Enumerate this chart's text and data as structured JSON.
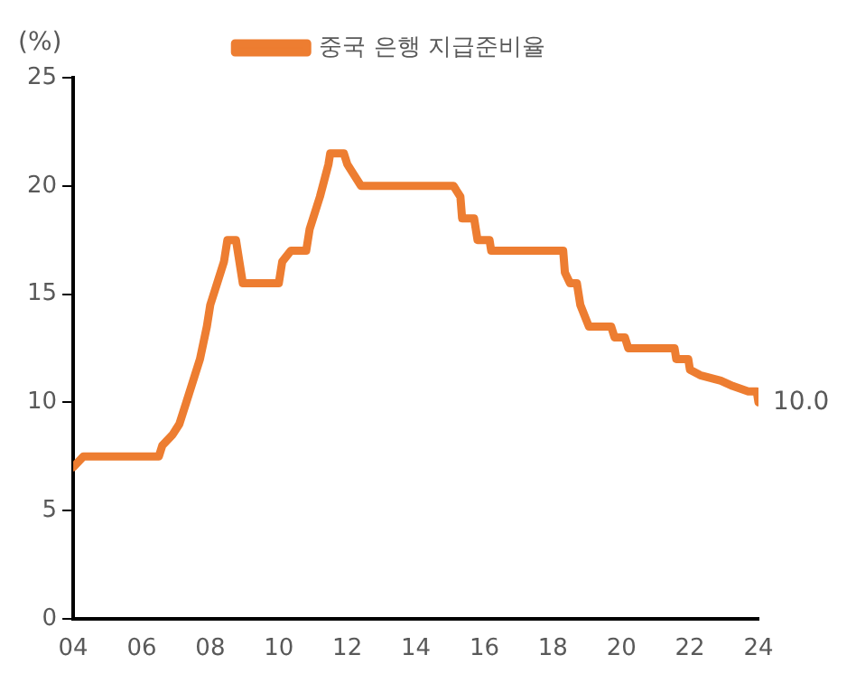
{
  "chart_data": {
    "type": "line",
    "ylabel": "(%)",
    "legend": "top",
    "x": [
      2004.0,
      2004.3,
      2006.5,
      2006.6,
      2006.9,
      2007.1,
      2007.3,
      2007.5,
      2007.7,
      2007.9,
      2008.0,
      2008.2,
      2008.4,
      2008.5,
      2008.75,
      2008.85,
      2008.95,
      2010.0,
      2010.1,
      2010.35,
      2010.8,
      2010.9,
      2011.2,
      2011.45,
      2011.5,
      2011.9,
      2012.0,
      2012.2,
      2012.4,
      2015.1,
      2015.3,
      2015.35,
      2015.7,
      2015.8,
      2016.15,
      2016.2,
      2018.3,
      2018.35,
      2018.5,
      2018.7,
      2018.8,
      2019.05,
      2019.7,
      2019.8,
      2020.1,
      2020.2,
      2021.55,
      2021.6,
      2021.95,
      2022.0,
      2022.3,
      2022.9,
      2023.25,
      2023.7,
      2023.95,
      2024.0
    ],
    "series": [
      {
        "name": "중국 은행 지급준비율",
        "color": "#ed7d31",
        "values": [
          7,
          7.5,
          7.5,
          8,
          8.5,
          9,
          10,
          11,
          12,
          13.5,
          14.5,
          15.5,
          16.5,
          17.5,
          17.5,
          16.5,
          15.5,
          15.5,
          16.5,
          17,
          17,
          18,
          19.5,
          21,
          21.5,
          21.5,
          21,
          20.5,
          20,
          20,
          19.5,
          18.5,
          18.5,
          17.5,
          17.5,
          17,
          17,
          16,
          15.5,
          15.5,
          14.5,
          13.5,
          13.5,
          13,
          13,
          12.5,
          12.5,
          12,
          12,
          11.5,
          11.25,
          11,
          10.75,
          10.5,
          10.5,
          10
        ]
      }
    ],
    "xlim": [
      2004,
      2024
    ],
    "xticks": [
      {
        "value": 2004,
        "label": "04"
      },
      {
        "value": 2006,
        "label": "06"
      },
      {
        "value": 2008,
        "label": "08"
      },
      {
        "value": 2010,
        "label": "10"
      },
      {
        "value": 2012,
        "label": "12"
      },
      {
        "value": 2014,
        "label": "14"
      },
      {
        "value": 2016,
        "label": "16"
      },
      {
        "value": 2018,
        "label": "18"
      },
      {
        "value": 2020,
        "label": "20"
      },
      {
        "value": 2022,
        "label": "22"
      },
      {
        "value": 2024,
        "label": "24"
      }
    ],
    "ylim": [
      0,
      25
    ],
    "yticks": [
      0,
      5,
      10,
      15,
      20,
      25
    ],
    "grid": false,
    "marker": "none",
    "line_style": "solid",
    "annotations": [
      {
        "text": "10.0",
        "x": 2024,
        "y": 10
      }
    ]
  }
}
